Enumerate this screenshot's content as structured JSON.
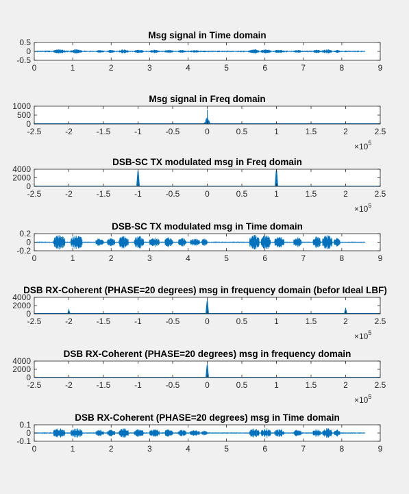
{
  "figure": {
    "background": "#f0f0f0",
    "axes_background": "#ffffff",
    "line_color": "#0072bd",
    "axis_color": "#262626"
  },
  "chart_data": [
    {
      "type": "line",
      "title": "Msg signal in Time domain",
      "kind": "time",
      "xlim": [
        0,
        9
      ],
      "ylim": [
        -0.5,
        0.5
      ],
      "xticks": [
        0,
        1,
        2,
        3,
        4,
        5,
        6,
        7,
        8,
        9
      ],
      "xtick_labels": [
        "0",
        "1",
        "2",
        "3",
        "4",
        "5",
        "6",
        "7",
        "8",
        "9"
      ],
      "yticks": [
        -0.5,
        0,
        0.5
      ],
      "ytick_labels": [
        "-0.5",
        "0",
        "0.5"
      ],
      "x_exponent": "",
      "signal_extent": [
        0,
        8.6
      ],
      "noise_level": 0.02,
      "peak_amplitude": 0.12,
      "bursts": [
        [
          0.5,
          0.8,
          1
        ],
        [
          0.95,
          1.25,
          1
        ],
        [
          1.6,
          1.8,
          0.7
        ],
        [
          1.9,
          2.1,
          0.7
        ],
        [
          2.2,
          2.45,
          1
        ],
        [
          2.6,
          2.85,
          0.8
        ],
        [
          3.0,
          3.25,
          0.8
        ],
        [
          3.4,
          3.6,
          0.8
        ],
        [
          3.75,
          3.95,
          0.7
        ],
        [
          4.05,
          4.3,
          0.6
        ],
        [
          4.35,
          4.5,
          0.5
        ],
        [
          5.6,
          5.85,
          1
        ],
        [
          5.9,
          6.15,
          1
        ],
        [
          6.25,
          6.5,
          0.8
        ],
        [
          6.75,
          6.95,
          0.7
        ],
        [
          7.25,
          7.45,
          0.8
        ],
        [
          7.5,
          7.75,
          1
        ],
        [
          7.8,
          7.95,
          0.7
        ]
      ],
      "spikes": []
    },
    {
      "type": "line",
      "title": "Msg signal in Freq domain",
      "kind": "freq",
      "xlim": [
        -250000,
        250000
      ],
      "ylim": [
        0,
        1000
      ],
      "xticks": [
        -250000,
        -200000,
        -150000,
        -100000,
        -50000,
        0,
        50000,
        100000,
        150000,
        200000,
        250000
      ],
      "xtick_labels": [
        "-2.5",
        "-2",
        "-1.5",
        "-1",
        "-0.5",
        "0",
        "0.5",
        "1",
        "1.5",
        "2",
        "2.5"
      ],
      "yticks": [
        0,
        500,
        1000
      ],
      "ytick_labels": [
        "0",
        "500",
        "1000"
      ],
      "x_exponent": "5",
      "spikes": [],
      "clusters": [
        {
          "center": 0,
          "halfwidth": 7000,
          "height": 400,
          "peak": 800
        }
      ]
    },
    {
      "type": "line",
      "title": "DSB-SC TX modulated msg in Freq domain",
      "kind": "freq",
      "xlim": [
        -250000,
        250000
      ],
      "ylim": [
        0,
        4000
      ],
      "xticks": [
        -250000,
        -200000,
        -150000,
        -100000,
        -50000,
        0,
        50000,
        100000,
        150000,
        200000,
        250000
      ],
      "xtick_labels": [
        "-2.5",
        "-2",
        "-1.5",
        "-1",
        "-0.5",
        "0",
        "0.5",
        "1",
        "1.5",
        "2",
        "2.5"
      ],
      "yticks": [
        0,
        2000,
        4000
      ],
      "ytick_labels": [
        "0",
        "2000",
        "4000"
      ],
      "x_exponent": "5",
      "spikes": [
        {
          "x": -100000,
          "y": 3800
        },
        {
          "x": 100000,
          "y": 4000
        }
      ],
      "clusters": []
    },
    {
      "type": "line",
      "title": "DSB-SC TX modulated msg in Time domain",
      "kind": "time",
      "xlim": [
        0,
        9
      ],
      "ylim": [
        -0.2,
        0.2
      ],
      "xticks": [
        0,
        1,
        2,
        3,
        4,
        5,
        6,
        7,
        8,
        9
      ],
      "xtick_labels": [
        "0",
        "1",
        "2",
        "3",
        "4",
        "5",
        "6",
        "7",
        "8",
        "9"
      ],
      "yticks": [
        -0.2,
        0,
        0.2
      ],
      "ytick_labels": [
        "-0.2",
        "0",
        "0.2"
      ],
      "x_exponent": "",
      "signal_extent": [
        0,
        8.6
      ],
      "noise_level": 0.012,
      "peak_amplitude": 0.17,
      "bursts": [
        [
          0.5,
          0.8,
          1
        ],
        [
          0.95,
          1.25,
          1
        ],
        [
          1.6,
          1.8,
          0.6
        ],
        [
          1.9,
          2.1,
          0.6
        ],
        [
          2.2,
          2.45,
          0.9
        ],
        [
          2.6,
          2.85,
          0.9
        ],
        [
          3.0,
          3.25,
          0.7
        ],
        [
          3.4,
          3.6,
          0.7
        ],
        [
          3.75,
          3.95,
          0.6
        ],
        [
          4.05,
          4.3,
          0.5
        ],
        [
          4.35,
          4.5,
          0.5
        ],
        [
          5.6,
          5.85,
          1
        ],
        [
          5.9,
          6.15,
          1
        ],
        [
          6.25,
          6.5,
          0.8
        ],
        [
          6.75,
          6.95,
          0.7
        ],
        [
          7.25,
          7.45,
          0.8
        ],
        [
          7.5,
          7.75,
          1
        ],
        [
          7.8,
          7.95,
          0.6
        ]
      ],
      "spikes": []
    },
    {
      "type": "line",
      "title": "DSB RX-Coherent (PHASE=20 degrees) msg in frequency domain (befor Ideal LBF)",
      "kind": "freq",
      "xlim": [
        -250000,
        250000
      ],
      "ylim": [
        0,
        4000
      ],
      "xticks": [
        -250000,
        -200000,
        -150000,
        -100000,
        -50000,
        0,
        50000,
        100000,
        150000,
        200000,
        250000
      ],
      "xtick_labels": [
        "-2.5",
        "-2",
        "-1.5",
        "-1",
        "-0.5",
        "0",
        "0.5",
        "1",
        "1.5",
        "2",
        "2.5"
      ],
      "yticks": [
        0,
        2000,
        4000
      ],
      "ytick_labels": [
        "0",
        "2000",
        "4000"
      ],
      "x_exponent": "5",
      "spikes": [
        {
          "x": -200000,
          "y": 1200
        },
        {
          "x": 0,
          "y": 3400
        },
        {
          "x": 200000,
          "y": 1500
        }
      ],
      "clusters": []
    },
    {
      "type": "line",
      "title": "DSB RX-Coherent  (PHASE=20 degrees) msg in frequency domain",
      "kind": "freq",
      "xlim": [
        -250000,
        250000
      ],
      "ylim": [
        0,
        4000
      ],
      "xticks": [
        -250000,
        -200000,
        -150000,
        -100000,
        -50000,
        0,
        50000,
        100000,
        150000,
        200000,
        250000
      ],
      "xtick_labels": [
        "-2.5",
        "-2",
        "-1.5",
        "-1",
        "-0.5",
        "0",
        "0.5",
        "1",
        "1.5",
        "2",
        "2.5"
      ],
      "yticks": [
        0,
        2000,
        4000
      ],
      "ytick_labels": [
        "0",
        "2000",
        "4000"
      ],
      "x_exponent": "5",
      "spikes": [
        {
          "x": 0,
          "y": 3300
        }
      ],
      "clusters": []
    },
    {
      "type": "line",
      "title": "DSB RX-Coherent  (PHASE=20 degrees) msg in Time domain",
      "kind": "time",
      "xlim": [
        0,
        9
      ],
      "ylim": [
        -0.1,
        0.1
      ],
      "xticks": [
        0,
        1,
        2,
        3,
        4,
        5,
        6,
        7,
        8,
        9
      ],
      "xtick_labels": [
        "0",
        "1",
        "2",
        "3",
        "4",
        "5",
        "6",
        "7",
        "8",
        "9"
      ],
      "yticks": [
        -0.1,
        0,
        0.1
      ],
      "ytick_labels": [
        "-0.1",
        "0",
        "0.1"
      ],
      "x_exponent": "",
      "signal_extent": [
        0,
        8.6
      ],
      "noise_level": 0.006,
      "peak_amplitude": 0.06,
      "bursts": [
        [
          0.5,
          0.8,
          1
        ],
        [
          0.95,
          1.25,
          1
        ],
        [
          1.6,
          1.8,
          0.7
        ],
        [
          1.9,
          2.1,
          0.7
        ],
        [
          2.2,
          2.45,
          1
        ],
        [
          2.6,
          2.85,
          0.8
        ],
        [
          3.0,
          3.25,
          0.8
        ],
        [
          3.4,
          3.6,
          0.8
        ],
        [
          3.75,
          3.95,
          0.7
        ],
        [
          4.05,
          4.3,
          0.6
        ],
        [
          4.35,
          4.5,
          0.5
        ],
        [
          5.6,
          5.85,
          1
        ],
        [
          5.9,
          6.15,
          1
        ],
        [
          6.25,
          6.5,
          0.8
        ],
        [
          6.75,
          6.95,
          0.7
        ],
        [
          7.25,
          7.45,
          0.8
        ],
        [
          7.5,
          7.75,
          1
        ],
        [
          7.8,
          7.95,
          0.7
        ]
      ],
      "spikes": []
    }
  ]
}
